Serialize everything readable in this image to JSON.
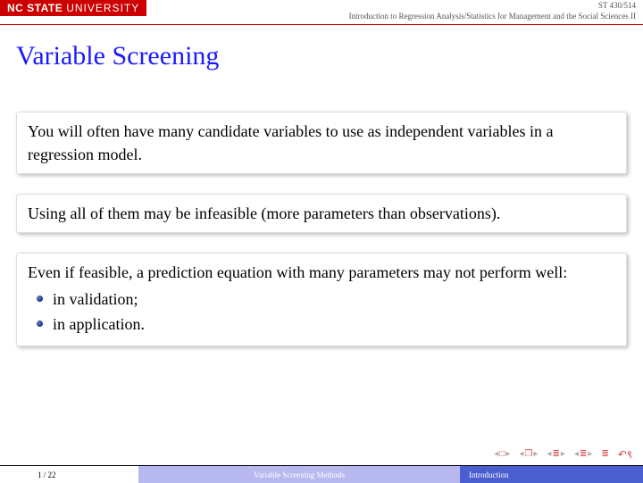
{
  "header": {
    "logo_bold": "NC STATE",
    "logo_light": "UNIVERSITY",
    "course_code": "ST 430/514",
    "course_title": "Introduction to Regression Analysis/Statistics for Management and the Social Sciences II"
  },
  "title": "Variable Screening",
  "blocks": [
    {
      "text": "You will often have many candidate variables to use as independent variables in a regression model."
    },
    {
      "text": "Using all of them may be infeasible (more parameters than observations)."
    },
    {
      "text": "Even if feasible, a prediction equation with many parameters may not perform well:",
      "bullets": [
        "in validation;",
        "in application."
      ]
    }
  ],
  "footer": {
    "page": "1 / 22",
    "mid": "Variable Screening Methods",
    "section": "Introduction"
  },
  "colors": {
    "brand_red": "#cc0000",
    "title_blue": "#1a1aff",
    "footer_mid": "#b8b8f0",
    "footer_section": "#4a5ed0"
  }
}
